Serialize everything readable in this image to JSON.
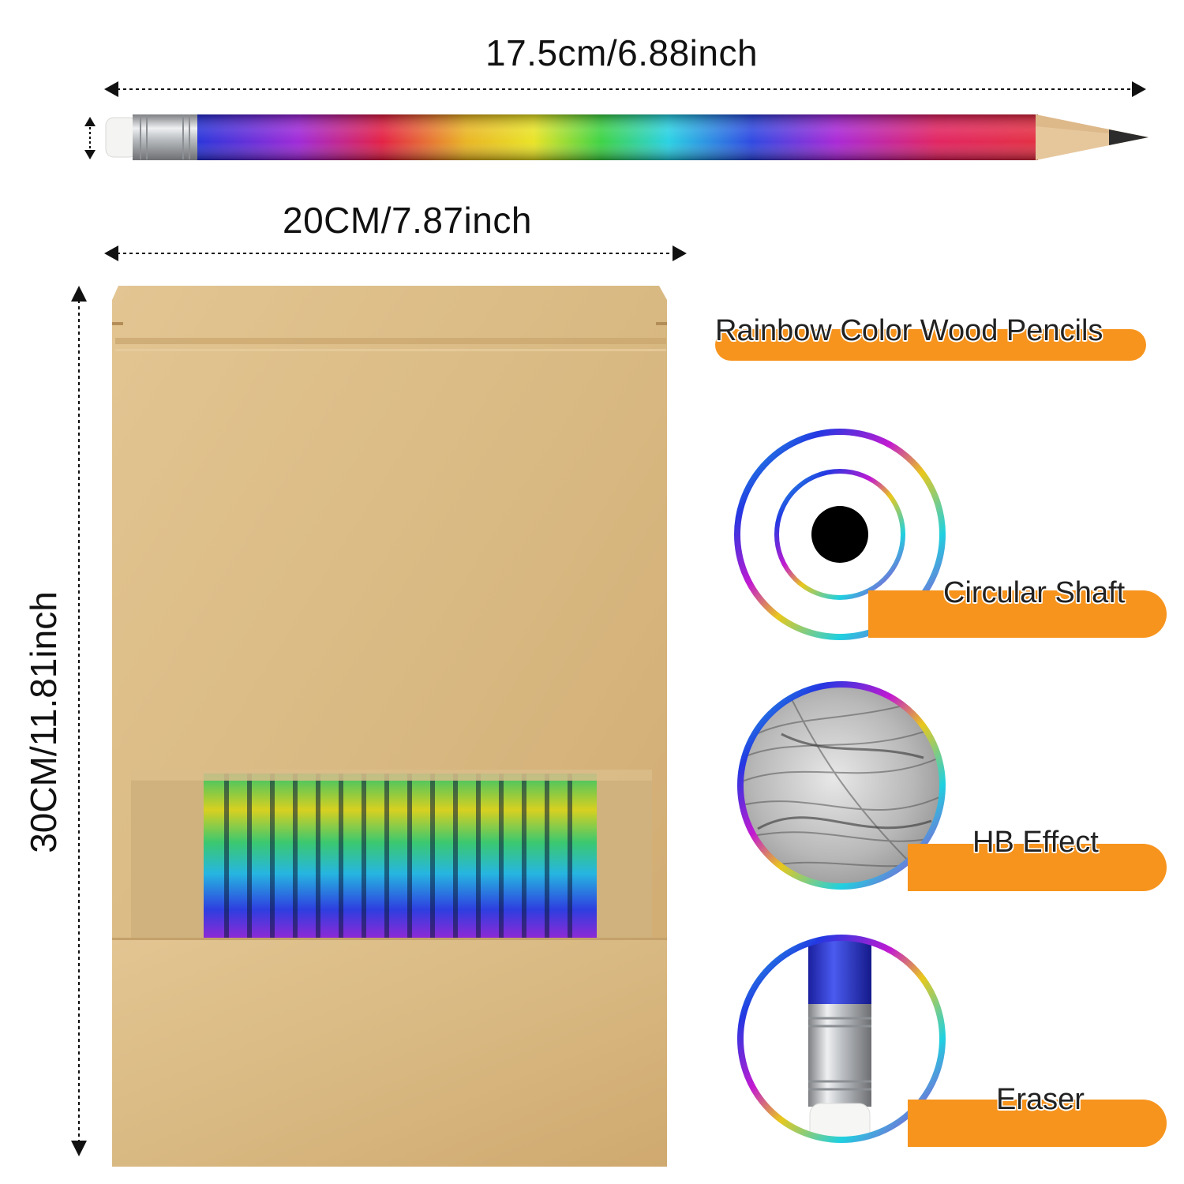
{
  "dimensions": {
    "pencil_length": "17.5cm/6.88inch",
    "bag_width": "20CM/7.87inch",
    "bag_height": "30CM/11.81inch"
  },
  "title": "Rainbow Color Wood Pencils",
  "features": [
    {
      "label": "Circular Shaft",
      "icon": "circular-shaft-icon"
    },
    {
      "label": "HB Effect",
      "icon": "hb-sketch-icon"
    },
    {
      "label": "Eraser",
      "icon": "eraser-closeup-icon"
    }
  ],
  "colors": {
    "accent_orange": "#f7941d",
    "kraft": "#d8b67f",
    "rainbow": [
      "#1f2bd8",
      "#c21ad1",
      "#e01646",
      "#e9d21c",
      "#35d13c",
      "#1fd0e0",
      "#2338e2"
    ]
  }
}
